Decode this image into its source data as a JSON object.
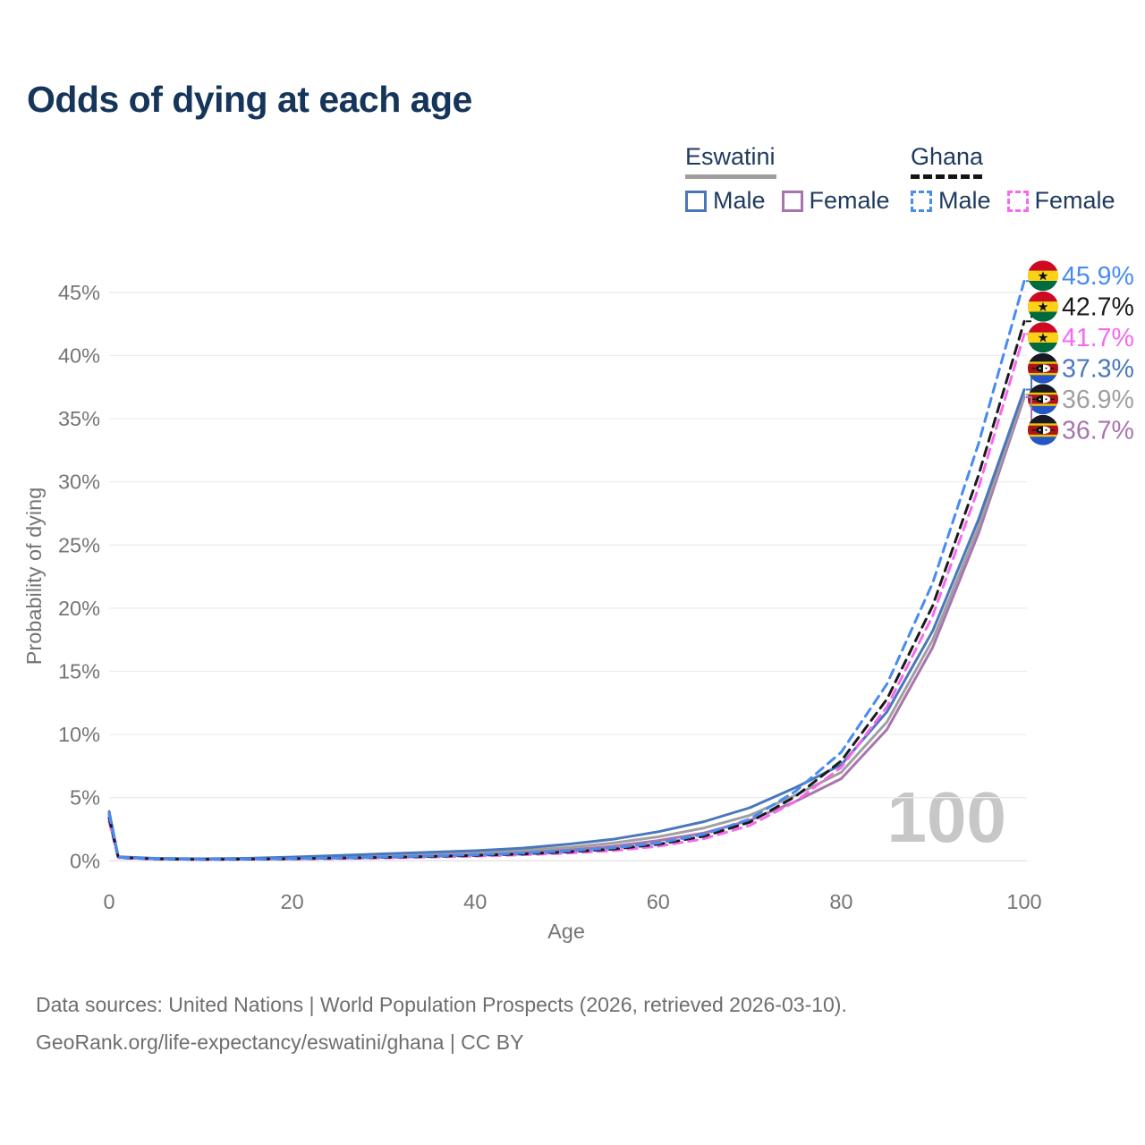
{
  "title": "Odds of dying at each age",
  "legend": {
    "groups": [
      {
        "name": "Eswatini",
        "line_style": "solid",
        "underline_color": "#9e9e9e",
        "items": [
          {
            "label": "Male",
            "color": "#4a77bb"
          },
          {
            "label": "Female",
            "color": "#a974ae"
          }
        ]
      },
      {
        "name": "Ghana",
        "line_style": "dashed",
        "underline_color": "#141414",
        "items": [
          {
            "label": "Male",
            "color": "#478bf3"
          },
          {
            "label": "Female",
            "color": "#f768ee"
          }
        ]
      }
    ]
  },
  "watermark": "100",
  "footer": {
    "line1": "Data sources: United Nations | World Population Prospects (2026, retrieved 2026-03-10).",
    "line2": "GeoRank.org/life-expectancy/eswatini/ghana | CC BY"
  },
  "chart_data": {
    "type": "line",
    "title": "Odds of dying at each age",
    "xlabel": "Age",
    "ylabel": "Probability of dying",
    "xlim": [
      0,
      100
    ],
    "ylim": [
      0,
      46
    ],
    "x_ticks": [
      0,
      20,
      40,
      60,
      80,
      100
    ],
    "y_ticks": [
      0,
      5,
      10,
      15,
      20,
      25,
      30,
      35,
      40,
      45
    ],
    "y_tick_suffix": "%",
    "grid": true,
    "legend_position": "top-right",
    "ages": [
      0,
      1,
      5,
      10,
      15,
      20,
      25,
      30,
      35,
      40,
      45,
      50,
      55,
      60,
      65,
      70,
      75,
      80,
      85,
      90,
      95,
      100
    ],
    "series": [
      {
        "id": "eswatini-female",
        "name": "Eswatini Female",
        "country": "Eswatini",
        "flag": "eswatini",
        "color": "#a974ae",
        "dash": false,
        "end_label": "36.7%",
        "values": [
          3.4,
          0.28,
          0.17,
          0.13,
          0.15,
          0.2,
          0.26,
          0.34,
          0.43,
          0.53,
          0.67,
          0.85,
          1.15,
          1.6,
          2.2,
          3.2,
          4.7,
          6.5,
          10.4,
          16.9,
          25.9,
          36.7
        ]
      },
      {
        "id": "eswatini-all",
        "name": "Eswatini",
        "country": "Eswatini",
        "flag": "eswatini",
        "color": "#a0a0a0",
        "dash": false,
        "end_label": "36.9%",
        "values": [
          3.6,
          0.3,
          0.18,
          0.14,
          0.17,
          0.25,
          0.33,
          0.44,
          0.55,
          0.66,
          0.82,
          1.05,
          1.4,
          1.9,
          2.6,
          3.6,
          5.2,
          7.0,
          11.0,
          17.5,
          26.4,
          36.9
        ]
      },
      {
        "id": "eswatini-male",
        "name": "Eswatini Male",
        "country": "Eswatini",
        "flag": "eswatini",
        "color": "#4a77bb",
        "dash": false,
        "end_label": "37.3%",
        "values": [
          3.9,
          0.32,
          0.2,
          0.16,
          0.2,
          0.3,
          0.42,
          0.55,
          0.68,
          0.8,
          1.0,
          1.3,
          1.7,
          2.3,
          3.1,
          4.2,
          5.8,
          7.6,
          11.8,
          18.2,
          27.0,
          37.3
        ]
      },
      {
        "id": "ghana-female",
        "name": "Ghana Female",
        "country": "Ghana",
        "flag": "ghana",
        "color": "#f768ee",
        "dash": true,
        "end_label": "41.7%",
        "values": [
          3.1,
          0.24,
          0.14,
          0.1,
          0.12,
          0.14,
          0.18,
          0.23,
          0.29,
          0.37,
          0.47,
          0.6,
          0.8,
          1.15,
          1.75,
          2.8,
          4.7,
          7.4,
          12.2,
          19.4,
          29.5,
          41.7
        ]
      },
      {
        "id": "ghana-all",
        "name": "Ghana",
        "country": "Ghana",
        "flag": "ghana",
        "color": "#1b1b1b",
        "dash": true,
        "end_label": "42.7%",
        "values": [
          3.4,
          0.26,
          0.15,
          0.11,
          0.13,
          0.16,
          0.21,
          0.27,
          0.34,
          0.43,
          0.54,
          0.7,
          0.92,
          1.3,
          1.95,
          3.05,
          5.1,
          7.9,
          12.8,
          20.2,
          30.5,
          42.7
        ]
      },
      {
        "id": "ghana-male",
        "name": "Ghana Male",
        "country": "Ghana",
        "flag": "ghana",
        "color": "#478bf3",
        "dash": true,
        "end_label": "45.9%",
        "values": [
          3.7,
          0.28,
          0.16,
          0.12,
          0.14,
          0.18,
          0.23,
          0.3,
          0.38,
          0.48,
          0.6,
          0.78,
          1.02,
          1.4,
          2.1,
          3.3,
          5.5,
          8.6,
          14.0,
          22.0,
          33.0,
          45.9
        ]
      }
    ]
  }
}
